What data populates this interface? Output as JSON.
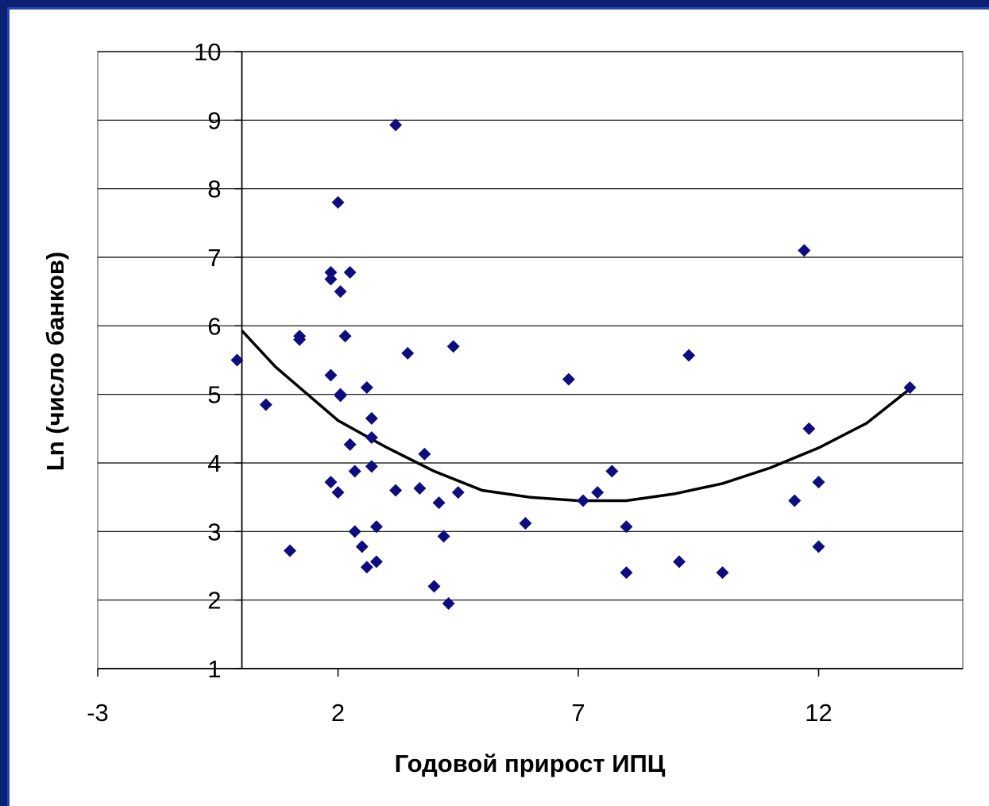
{
  "chart_data": {
    "type": "scatter",
    "title": "",
    "xlabel": "Годовой прирост ИПЦ",
    "ylabel": "Ln (число банков)",
    "xlim": [
      -3,
      15
    ],
    "ylim": [
      1,
      10
    ],
    "x_ticks": [
      "-3",
      "2",
      "7",
      "12"
    ],
    "y_ticks": [
      "1",
      "2",
      "3",
      "4",
      "5",
      "6",
      "7",
      "8",
      "9",
      "10"
    ],
    "grid": "horizontal",
    "legend": "none",
    "marker_color": "#0d0d80",
    "trend_color": "#000000",
    "series": [
      {
        "points": [
          {
            "x": -0.1,
            "y": 5.5
          },
          {
            "x": 0.5,
            "y": 4.85
          },
          {
            "x": 1.0,
            "y": 2.72
          },
          {
            "x": 1.2,
            "y": 5.85
          },
          {
            "x": 1.2,
            "y": 5.8
          },
          {
            "x": 1.85,
            "y": 6.78
          },
          {
            "x": 1.85,
            "y": 6.68
          },
          {
            "x": 1.85,
            "y": 5.28
          },
          {
            "x": 1.85,
            "y": 3.72
          },
          {
            "x": 2.0,
            "y": 7.8
          },
          {
            "x": 2.0,
            "y": 3.57
          },
          {
            "x": 2.05,
            "y": 6.5
          },
          {
            "x": 2.05,
            "y": 5.0
          },
          {
            "x": 2.05,
            "y": 4.98
          },
          {
            "x": 2.15,
            "y": 5.85
          },
          {
            "x": 2.25,
            "y": 6.78
          },
          {
            "x": 2.25,
            "y": 4.27
          },
          {
            "x": 2.35,
            "y": 3.88
          },
          {
            "x": 2.35,
            "y": 3.0
          },
          {
            "x": 2.5,
            "y": 2.78
          },
          {
            "x": 2.6,
            "y": 5.1
          },
          {
            "x": 2.6,
            "y": 2.48
          },
          {
            "x": 2.7,
            "y": 4.65
          },
          {
            "x": 2.7,
            "y": 4.37
          },
          {
            "x": 2.7,
            "y": 3.95
          },
          {
            "x": 2.8,
            "y": 3.07
          },
          {
            "x": 2.8,
            "y": 2.56
          },
          {
            "x": 3.2,
            "y": 8.93
          },
          {
            "x": 3.2,
            "y": 3.6
          },
          {
            "x": 3.45,
            "y": 5.6
          },
          {
            "x": 3.7,
            "y": 3.63
          },
          {
            "x": 3.8,
            "y": 4.13
          },
          {
            "x": 4.0,
            "y": 2.2
          },
          {
            "x": 4.1,
            "y": 3.42
          },
          {
            "x": 4.2,
            "y": 2.93
          },
          {
            "x": 4.3,
            "y": 1.95
          },
          {
            "x": 4.4,
            "y": 5.7
          },
          {
            "x": 4.5,
            "y": 3.57
          },
          {
            "x": 5.9,
            "y": 3.12
          },
          {
            "x": 6.8,
            "y": 5.22
          },
          {
            "x": 7.1,
            "y": 3.45
          },
          {
            "x": 7.4,
            "y": 3.57
          },
          {
            "x": 7.7,
            "y": 3.88
          },
          {
            "x": 8.0,
            "y": 3.07
          },
          {
            "x": 8.0,
            "y": 2.4
          },
          {
            "x": 9.1,
            "y": 2.56
          },
          {
            "x": 9.3,
            "y": 5.57
          },
          {
            "x": 10.0,
            "y": 2.4
          },
          {
            "x": 11.5,
            "y": 3.45
          },
          {
            "x": 11.7,
            "y": 7.1
          },
          {
            "x": 11.8,
            "y": 4.5
          },
          {
            "x": 12.0,
            "y": 3.72
          },
          {
            "x": 12.0,
            "y": 2.78
          },
          {
            "x": 13.9,
            "y": 5.1
          }
        ]
      },
      {
        "type": "line",
        "points": [
          {
            "x": 0.0,
            "y": 5.93
          },
          {
            "x": 0.7,
            "y": 5.4
          },
          {
            "x": 2.0,
            "y": 4.62
          },
          {
            "x": 3.0,
            "y": 4.23
          },
          {
            "x": 4.0,
            "y": 3.88
          },
          {
            "x": 5.0,
            "y": 3.6
          },
          {
            "x": 6.0,
            "y": 3.5
          },
          {
            "x": 7.0,
            "y": 3.45
          },
          {
            "x": 8.0,
            "y": 3.45
          },
          {
            "x": 9.0,
            "y": 3.55
          },
          {
            "x": 10.0,
            "y": 3.7
          },
          {
            "x": 11.0,
            "y": 3.93
          },
          {
            "x": 12.0,
            "y": 4.22
          },
          {
            "x": 13.0,
            "y": 4.58
          },
          {
            "x": 13.9,
            "y": 5.08
          }
        ]
      }
    ]
  }
}
